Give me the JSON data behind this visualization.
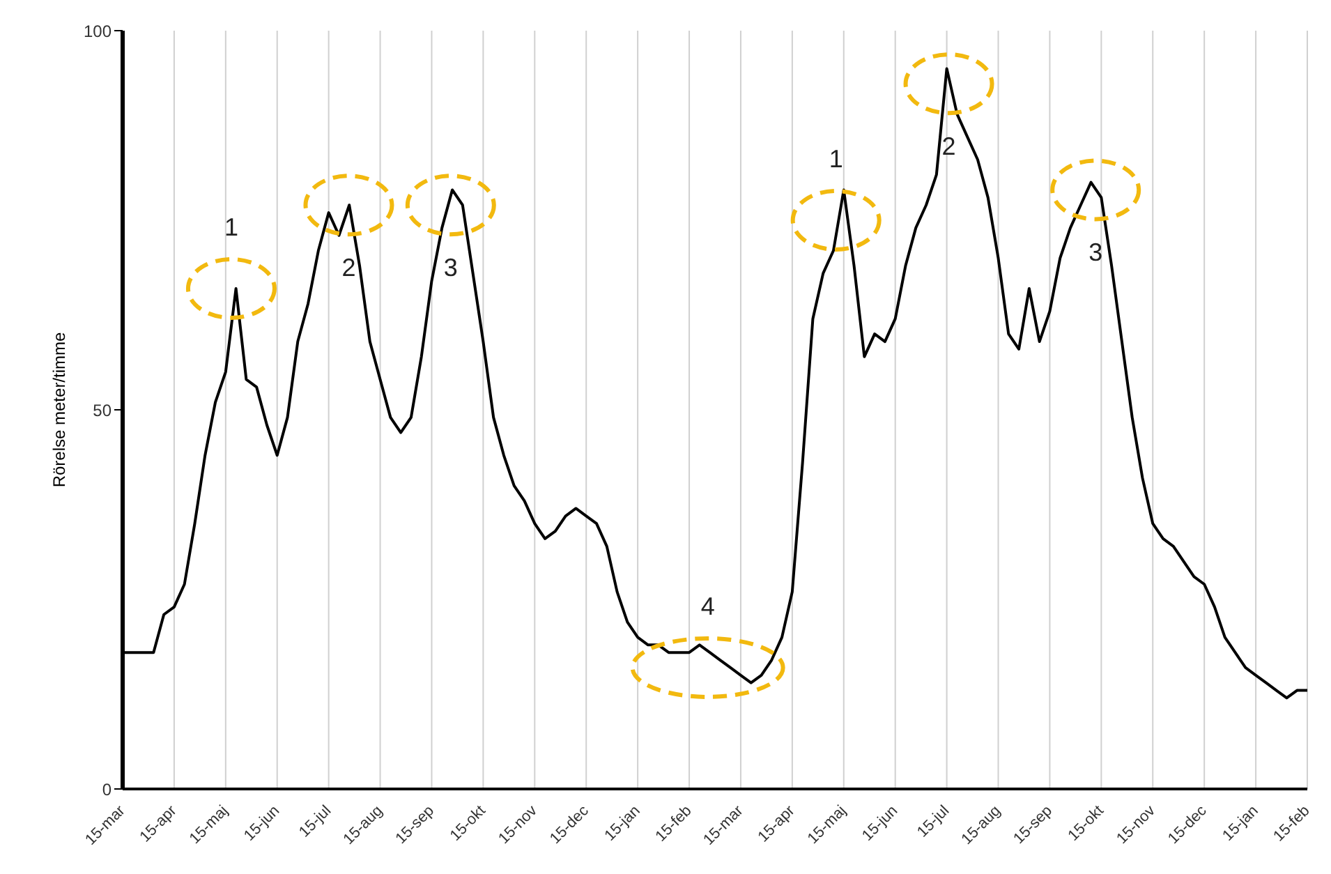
{
  "chart_data": {
    "type": "line",
    "ylabel": "Rörelse meter/timme",
    "categories": [
      "15-mar",
      null,
      null,
      null,
      null,
      "15-apr",
      null,
      null,
      null,
      null,
      "15-maj",
      null,
      null,
      null,
      null,
      "15-jun",
      null,
      null,
      null,
      null,
      "15-jul",
      null,
      null,
      null,
      null,
      "15-aug",
      null,
      null,
      null,
      null,
      "15-sep",
      null,
      null,
      null,
      null,
      "15-okt",
      null,
      null,
      null,
      null,
      "15-nov",
      null,
      null,
      null,
      null,
      "15-dec",
      null,
      null,
      null,
      null,
      "15-jan",
      null,
      null,
      null,
      null,
      "15-feb",
      null,
      null,
      null,
      null,
      "15-mar",
      null,
      null,
      null,
      null,
      "15-apr",
      null,
      null,
      null,
      null,
      "15-maj",
      null,
      null,
      null,
      null,
      "15-jun",
      null,
      null,
      null,
      null,
      "15-jul",
      null,
      null,
      null,
      null,
      "15-aug",
      null,
      null,
      null,
      null,
      "15-sep",
      null,
      null,
      null,
      null,
      "15-okt",
      null,
      null,
      null,
      null,
      "15-nov",
      null,
      null,
      null,
      null,
      "15-dec",
      null,
      null,
      null,
      null,
      "15-jan",
      null,
      null,
      null,
      null,
      "15-feb"
    ],
    "series": [
      {
        "color": "#000000",
        "values": [
          18,
          18,
          18,
          18,
          23,
          24,
          27,
          35,
          44,
          51,
          55,
          66,
          54,
          53,
          48,
          44,
          49,
          59,
          64,
          71,
          76,
          73,
          77,
          69,
          59,
          54,
          49,
          47,
          49,
          57,
          67,
          74,
          79,
          77,
          68,
          59,
          49,
          44,
          40,
          38,
          35,
          33,
          34,
          36,
          37,
          36,
          35,
          32,
          26,
          22,
          20,
          19,
          19,
          18,
          18,
          18,
          19,
          18,
          17,
          16,
          15,
          14,
          15,
          17,
          20,
          26,
          43,
          62,
          68,
          71,
          79,
          69,
          57,
          60,
          59,
          62,
          69,
          74,
          77,
          81,
          95,
          89,
          86,
          83,
          78,
          70,
          60,
          58,
          66,
          59,
          63,
          70,
          74,
          77,
          80,
          78,
          69,
          59,
          49,
          41,
          35,
          33,
          32,
          30,
          28,
          27,
          24,
          20,
          18,
          16,
          15,
          14,
          13,
          12,
          13,
          13
        ]
      }
    ],
    "ylim": [
      0,
      100
    ],
    "yticks": [
      0,
      50,
      100
    ],
    "grid": "x",
    "marker": "none",
    "line_style": "solid",
    "annotations": [
      "1",
      "2",
      "3",
      "4",
      "1",
      "2",
      "3"
    ]
  }
}
